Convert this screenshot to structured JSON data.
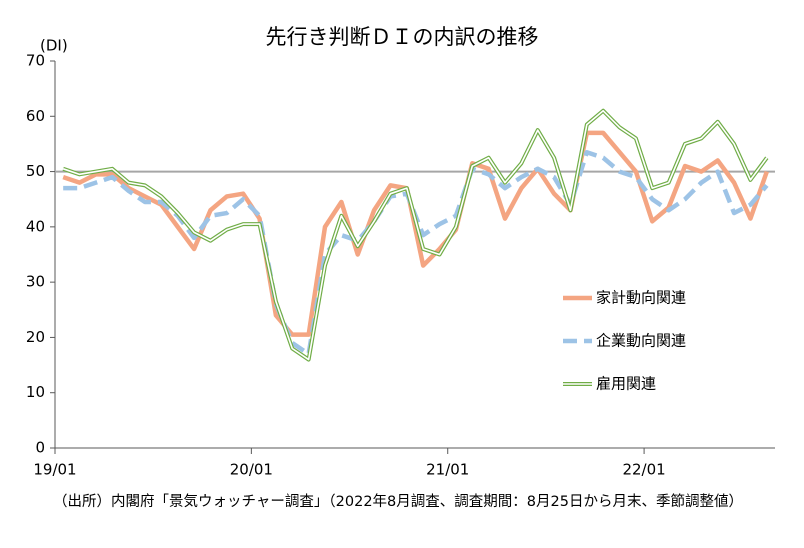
{
  "chart_data": {
    "type": "line",
    "title": "先行き判断ＤＩの内訳の推移",
    "y_label": "(DI)",
    "note": "（出所）内閣府「景気ウォッチャー調査」（2022年8月調査、調査期間：8月25日から月末、季節調整値）",
    "categories": [
      "19/01",
      null,
      null,
      null,
      null,
      null,
      null,
      null,
      null,
      null,
      null,
      null,
      "20/01",
      null,
      null,
      null,
      null,
      null,
      null,
      null,
      null,
      null,
      null,
      null,
      "21/01",
      null,
      null,
      null,
      null,
      null,
      null,
      null,
      null,
      null,
      null,
      null,
      "22/01",
      null,
      null,
      null,
      null,
      null,
      null,
      null
    ],
    "series": [
      {
        "name": "家計動向関連",
        "color": "#f4a582",
        "style": "solid",
        "values": [
          49,
          48,
          49.5,
          49.5,
          47,
          45.5,
          44,
          40,
          36,
          43,
          45.5,
          46,
          41.5,
          24,
          20.5,
          20.5,
          40,
          44.5,
          35,
          43,
          47.5,
          47,
          33,
          36,
          39.5,
          51.5,
          50.5,
          41.5,
          47,
          50.5,
          46,
          43,
          57,
          57,
          53.5,
          50,
          41,
          43.5,
          51,
          50,
          52,
          48,
          41.5,
          50
        ]
      },
      {
        "name": "企業動向関連",
        "color": "#9dc3e6",
        "style": "dashed",
        "values": [
          47,
          47,
          48,
          49,
          46.5,
          44.5,
          44.5,
          42,
          38,
          42,
          42.5,
          45,
          42,
          26,
          19,
          17,
          35,
          38.5,
          37.5,
          41,
          45.5,
          46,
          38.5,
          40.5,
          42,
          50.5,
          49.5,
          47,
          49,
          50.5,
          49,
          44,
          53.5,
          52.5,
          50,
          49,
          45,
          43,
          45,
          48,
          50,
          42.5,
          44,
          47.5
        ]
      },
      {
        "name": "雇用関連",
        "color": "#70ad47",
        "style": "double",
        "values": [
          50.5,
          49.5,
          50,
          50.5,
          48,
          47.5,
          45.5,
          42.5,
          39,
          37.5,
          39.5,
          40.5,
          40.5,
          26.5,
          18,
          16,
          33,
          42,
          36.5,
          41,
          46,
          47,
          36,
          35,
          40,
          51,
          52.5,
          48,
          51.5,
          57.5,
          52.5,
          43,
          58.5,
          61,
          58,
          56,
          47,
          48,
          55,
          56,
          59,
          55,
          48.5,
          52.5
        ]
      }
    ],
    "reference_line": 50,
    "reference_color": "#a6a6a6",
    "ylim": [
      0,
      70
    ],
    "yticks": [
      0,
      10,
      20,
      30,
      40,
      50,
      60,
      70
    ],
    "grid": false,
    "legend": "right"
  }
}
